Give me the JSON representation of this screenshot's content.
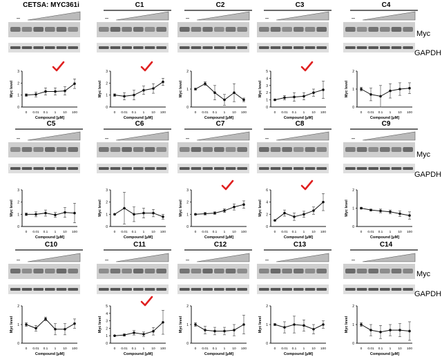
{
  "figure": {
    "row_labels": {
      "myc": "Myc",
      "gapdh": "GAPDH"
    },
    "placeholders": {
      "dash": "–"
    }
  },
  "axes": {
    "ylabel": "Myc level",
    "xlabel": "Compound [μM]",
    "xticks": [
      "0",
      "0.01",
      "0.1",
      "1",
      "10",
      "100"
    ]
  },
  "colors": {
    "check": "#e02020",
    "blot_bg": "#cfcfcf",
    "band_dark": "#2a2a2a"
  },
  "chart_data": [
    {
      "type": "line",
      "title": "CETSA: MYC361i",
      "x": [
        "0",
        "0.01",
        "0.1",
        "1",
        "10",
        "100"
      ],
      "values": [
        1.0,
        1.05,
        1.3,
        1.3,
        1.35,
        1.95
      ],
      "err": [
        0.1,
        0.2,
        0.3,
        0.3,
        0.35,
        0.4
      ],
      "ylim": [
        0,
        3
      ],
      "yticks": [
        0,
        1,
        2,
        3
      ],
      "checked": true
    },
    {
      "type": "line",
      "title": "C1",
      "x": [
        "0",
        "0.01",
        "0.1",
        "1",
        "10",
        "100"
      ],
      "values": [
        1.0,
        0.9,
        1.0,
        1.4,
        1.55,
        2.1
      ],
      "err": [
        0.1,
        0.3,
        0.4,
        0.35,
        0.4,
        0.3
      ],
      "ylim": [
        0,
        3
      ],
      "yticks": [
        0,
        1,
        2,
        3
      ],
      "checked": true
    },
    {
      "type": "line",
      "title": "C2",
      "x": [
        "0",
        "0.01",
        "0.1",
        "1",
        "10",
        "100"
      ],
      "values": [
        1.0,
        1.3,
        0.8,
        0.4,
        0.8,
        0.4
      ],
      "err": [
        0.05,
        0.1,
        0.4,
        0.3,
        0.5,
        0.1
      ],
      "ylim": [
        0,
        2
      ],
      "yticks": [
        0,
        1,
        2
      ],
      "checked": false
    },
    {
      "type": "line",
      "title": "C3",
      "x": [
        "0",
        "0.01",
        "0.1",
        "1",
        "10",
        "100"
      ],
      "values": [
        1.0,
        1.3,
        1.4,
        1.5,
        2.0,
        2.4
      ],
      "err": [
        0.1,
        0.3,
        0.6,
        0.5,
        0.5,
        1.2
      ],
      "ylim": [
        0,
        5
      ],
      "yticks": [
        0,
        1,
        2,
        3,
        4,
        5
      ],
      "checked": true
    },
    {
      "type": "line",
      "title": "C4",
      "x": [
        "0",
        "0.01",
        "0.1",
        "1",
        "10",
        "100"
      ],
      "values": [
        1.0,
        0.7,
        0.6,
        0.9,
        1.0,
        1.05
      ],
      "err": [
        0.1,
        0.35,
        0.6,
        0.4,
        0.35,
        0.3
      ],
      "ylim": [
        0,
        2
      ],
      "yticks": [
        0,
        1,
        2
      ],
      "checked": false
    },
    {
      "type": "line",
      "title": "C5",
      "x": [
        "0",
        "0.01",
        "0.1",
        "1",
        "10",
        "100"
      ],
      "values": [
        1.0,
        1.0,
        1.1,
        0.95,
        1.15,
        1.1
      ],
      "err": [
        0.1,
        0.2,
        0.25,
        0.2,
        0.4,
        0.8
      ],
      "ylim": [
        0,
        3
      ],
      "yticks": [
        0,
        1,
        2,
        3
      ],
      "checked": false
    },
    {
      "type": "line",
      "title": "C6",
      "x": [
        "0",
        "0.01",
        "0.1",
        "1",
        "10",
        "100"
      ],
      "values": [
        1.0,
        1.5,
        1.0,
        1.1,
        1.1,
        0.8
      ],
      "err": [
        0.05,
        1.3,
        0.6,
        0.4,
        0.3,
        0.2
      ],
      "ylim": [
        0,
        3
      ],
      "yticks": [
        0,
        1,
        2,
        3
      ],
      "checked": false
    },
    {
      "type": "line",
      "title": "C7",
      "x": [
        "0",
        "0.01",
        "0.1",
        "1",
        "10",
        "100"
      ],
      "values": [
        1.0,
        1.05,
        1.1,
        1.3,
        1.6,
        1.8
      ],
      "err": [
        0.05,
        0.1,
        0.1,
        0.15,
        0.25,
        0.3
      ],
      "ylim": [
        0,
        3
      ],
      "yticks": [
        0,
        1,
        2,
        3
      ],
      "checked": true
    },
    {
      "type": "line",
      "title": "C8",
      "x": [
        "0",
        "0.01",
        "0.1",
        "1",
        "10",
        "100"
      ],
      "values": [
        1.0,
        2.2,
        1.6,
        2.0,
        2.6,
        4.0
      ],
      "err": [
        0.1,
        0.5,
        0.6,
        0.5,
        0.6,
        1.4
      ],
      "ylim": [
        0,
        6
      ],
      "yticks": [
        0,
        2,
        4,
        6
      ],
      "checked": true
    },
    {
      "type": "line",
      "title": "C9",
      "x": [
        "0",
        "0.01",
        "0.1",
        "1",
        "10",
        "100"
      ],
      "values": [
        1.0,
        0.9,
        0.85,
        0.8,
        0.7,
        0.6
      ],
      "err": [
        0.05,
        0.05,
        0.1,
        0.1,
        0.15,
        0.2
      ],
      "ylim": [
        0,
        2
      ],
      "yticks": [
        0,
        1,
        2
      ],
      "checked": false
    },
    {
      "type": "line",
      "title": "C10",
      "x": [
        "0",
        "0.01",
        "0.1",
        "1",
        "10",
        "100"
      ],
      "values": [
        1.0,
        0.8,
        1.3,
        0.75,
        0.75,
        1.05
      ],
      "err": [
        0.1,
        0.15,
        0.1,
        0.3,
        0.3,
        0.25
      ],
      "ylim": [
        0,
        2
      ],
      "yticks": [
        0,
        1,
        2
      ],
      "checked": false
    },
    {
      "type": "line",
      "title": "C11",
      "x": [
        "0",
        "0.01",
        "0.1",
        "1",
        "10",
        "100"
      ],
      "values": [
        1.0,
        1.1,
        1.4,
        1.2,
        1.6,
        2.8
      ],
      "err": [
        0.05,
        0.15,
        0.3,
        0.3,
        0.5,
        1.6
      ],
      "ylim": [
        0,
        5
      ],
      "yticks": [
        0,
        1,
        2,
        3,
        4,
        5
      ],
      "checked": true
    },
    {
      "type": "line",
      "title": "C12",
      "x": [
        "0",
        "0.01",
        "0.1",
        "1",
        "10",
        "100"
      ],
      "values": [
        1.0,
        0.7,
        0.65,
        0.65,
        0.7,
        1.0
      ],
      "err": [
        0.1,
        0.2,
        0.2,
        0.2,
        0.3,
        0.5
      ],
      "ylim": [
        0,
        2
      ],
      "yticks": [
        0,
        1,
        2
      ],
      "checked": false
    },
    {
      "type": "line",
      "title": "C13",
      "x": [
        "0",
        "0.01",
        "0.1",
        "1",
        "10",
        "100"
      ],
      "values": [
        1.0,
        0.85,
        1.0,
        0.95,
        0.75,
        1.0
      ],
      "err": [
        0.05,
        0.3,
        0.45,
        0.3,
        0.25,
        0.2
      ],
      "ylim": [
        0,
        2
      ],
      "yticks": [
        0,
        1,
        2
      ],
      "checked": false
    },
    {
      "type": "line",
      "title": "C14",
      "x": [
        "0",
        "0.01",
        "0.1",
        "1",
        "10",
        "100"
      ],
      "values": [
        1.0,
        0.7,
        0.6,
        0.7,
        0.7,
        0.65
      ],
      "err": [
        0.1,
        0.3,
        0.35,
        0.3,
        0.35,
        0.5
      ],
      "ylim": [
        0,
        2
      ],
      "yticks": [
        0,
        1,
        2
      ],
      "checked": false
    }
  ]
}
